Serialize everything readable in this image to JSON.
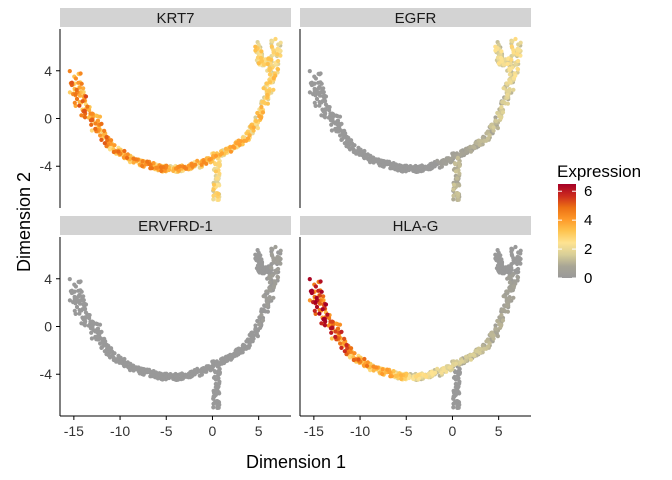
{
  "chart_data": {
    "type": "scatter",
    "facets": [
      "KRT7",
      "EGFR",
      "ERVFRD-1",
      "HLA-G"
    ],
    "xlabel": "Dimension 1",
    "ylabel": "Dimension 2",
    "xlim": [
      -16.5,
      8.5
    ],
    "ylim": [
      -7.5,
      7.5
    ],
    "x_ticks": [
      -15,
      -10,
      -5,
      0,
      5
    ],
    "x_tick_labels": [
      "-15",
      "-10",
      "-5",
      "0",
      "5"
    ],
    "y_ticks": [
      4,
      0,
      -4
    ],
    "y_tick_labels": [
      "4",
      "0",
      "-4"
    ],
    "legend": {
      "title": "Expression",
      "position": "right",
      "min": 0,
      "max": 6.5,
      "ticks": [
        6,
        4,
        2,
        0
      ],
      "tick_labels": [
        "6",
        "4",
        "2",
        "0"
      ],
      "colors": [
        "#999999",
        "#a8a595",
        "#d9cf98",
        "#fee391",
        "#fec44f",
        "#fe9929",
        "#ec7014",
        "#cc2a1e",
        "#a50026"
      ]
    },
    "trajectory_path": [
      [
        -15.0,
        3.6
      ],
      [
        -14.7,
        2.4
      ],
      [
        -14.0,
        1.2
      ],
      [
        -13.2,
        0.2
      ],
      [
        -12.4,
        -0.8
      ],
      [
        -11.5,
        -1.8
      ],
      [
        -10.5,
        -2.6
      ],
      [
        -9.4,
        -3.2
      ],
      [
        -8.2,
        -3.6
      ],
      [
        -7.0,
        -3.9
      ],
      [
        -5.8,
        -4.1
      ],
      [
        -4.6,
        -4.2
      ],
      [
        -3.4,
        -4.2
      ],
      [
        -2.2,
        -4.0
      ],
      [
        -1.0,
        -3.7
      ],
      [
        0.2,
        -3.2
      ],
      [
        1.4,
        -2.8
      ],
      [
        2.6,
        -2.3
      ],
      [
        3.6,
        -1.6
      ],
      [
        4.6,
        -0.6
      ],
      [
        5.3,
        0.6
      ],
      [
        5.9,
        1.9
      ],
      [
        6.3,
        3.1
      ],
      [
        6.6,
        4.2
      ],
      [
        6.8,
        5.3
      ],
      [
        6.9,
        6.3
      ]
    ],
    "side_branches": [
      {
        "name": "top-left-upper-branch",
        "points": [
          [
            4.9,
            6.2
          ],
          [
            5.0,
            5.5
          ],
          [
            5.1,
            4.9
          ],
          [
            5.6,
            4.6
          ],
          [
            6.1,
            4.8
          ]
        ]
      },
      {
        "name": "bottom-branch",
        "points": [
          [
            0.6,
            -3.3
          ],
          [
            0.5,
            -4.3
          ],
          [
            0.4,
            -5.3
          ],
          [
            0.4,
            -6.3
          ],
          [
            0.5,
            -6.9
          ]
        ]
      }
    ],
    "expression_profiles": {
      "KRT7": {
        "start": 3.8,
        "mid": 3.2,
        "end": 2.2,
        "branch": 2.4,
        "bottom": 2.2
      },
      "EGFR": {
        "start": 0.0,
        "mid": 0.05,
        "end": 2.1,
        "branch": 1.8,
        "bottom": 1.0
      },
      "ERVFRD-1": {
        "start": 0.0,
        "mid": 0.0,
        "end": 0.3,
        "branch": 0.0,
        "bottom": 0.0
      },
      "HLA-G": {
        "start": 5.4,
        "mid": 1.8,
        "end": 0.0,
        "branch": 0.0,
        "bottom": 0.0
      }
    }
  }
}
